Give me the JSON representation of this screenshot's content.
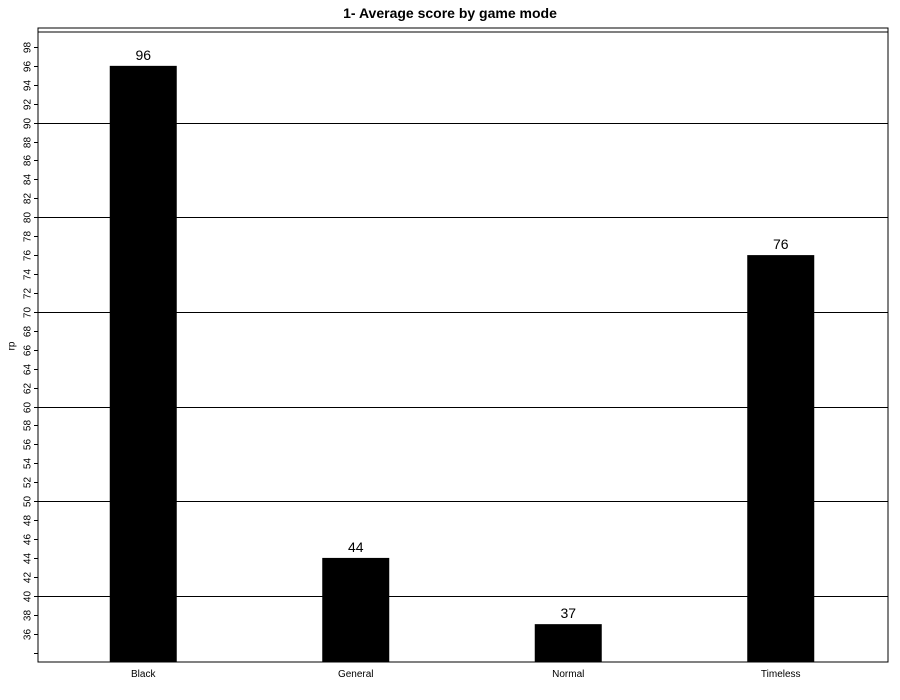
{
  "chart_data": {
    "type": "bar",
    "title": "1- Average score by game mode",
    "xlabel": "",
    "ylabel": "rp",
    "categories": [
      "Black",
      "General",
      "Normal",
      "Timeless"
    ],
    "values": [
      96,
      44,
      37,
      76
    ],
    "value_labels": [
      "96",
      "44",
      "37",
      "76"
    ],
    "ylim": [
      33,
      100
    ],
    "yticks": [
      34,
      36,
      38,
      40,
      42,
      44,
      46,
      48,
      50,
      52,
      54,
      56,
      58,
      60,
      62,
      64,
      66,
      68,
      70,
      72,
      74,
      76,
      78,
      80,
      82,
      84,
      86,
      88,
      90,
      92,
      94,
      96,
      98
    ],
    "ytick_labels": [
      "",
      "36",
      "38",
      "40",
      "42",
      "44",
      "46",
      "48",
      "50",
      "52",
      "54",
      "56",
      "58",
      "60",
      "62",
      "64",
      "66",
      "68",
      "70",
      "72",
      "74",
      "76",
      "78",
      "80",
      "82",
      "84",
      "86",
      "88",
      "90",
      "92",
      "94",
      "96",
      "98"
    ],
    "gridlines_at": [
      40,
      50,
      60,
      70,
      80,
      90,
      100
    ],
    "grid": true,
    "bar_color": "#000000",
    "legend": "none"
  }
}
